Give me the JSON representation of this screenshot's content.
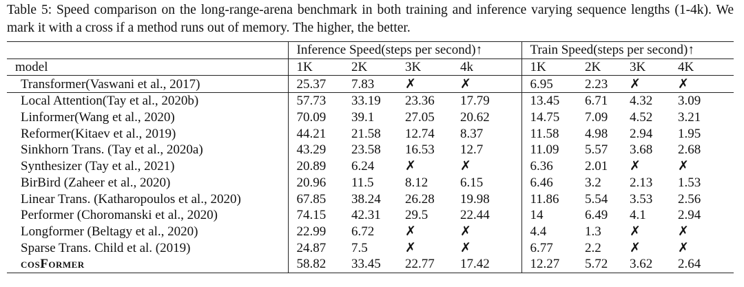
{
  "caption": "Table 5: Speed comparison on the long-range-arena benchmark in both training and inference varying sequence lengths (1-4k). We mark it with a cross if a method runs out of memory. The higher, the better.",
  "table": {
    "group_headers": [
      "Inference Speed(steps per second)↑",
      "Train Speed(steps per second)↑"
    ],
    "columns": [
      "model",
      "1K",
      "2K",
      "3K",
      "4k",
      "1K",
      "2K",
      "3K",
      "4K"
    ],
    "rows": [
      [
        "Transformer(Vaswani et al., 2017)",
        "25.37",
        "7.83",
        "✗",
        "✗",
        "6.95",
        "2.23",
        "✗",
        "✗"
      ],
      [
        "Local Attention(Tay et al., 2020b)",
        "57.73",
        "33.19",
        "23.36",
        "17.79",
        "13.45",
        "6.71",
        "4.32",
        "3.09"
      ],
      [
        "Linformer(Wang et al., 2020)",
        "70.09",
        "39.1",
        "27.05",
        "20.62",
        "14.75",
        "7.09",
        "4.52",
        "3.21"
      ],
      [
        "Reformer(Kitaev et al., 2019)",
        "44.21",
        "21.58",
        "12.74",
        "8.37",
        "11.58",
        "4.98",
        "2.94",
        "1.95"
      ],
      [
        "Sinkhorn Trans. (Tay et al., 2020a)",
        "43.29",
        "23.58",
        "16.53",
        "12.7",
        "11.09",
        "5.57",
        "3.68",
        "2.68"
      ],
      [
        "Synthesizer (Tay et al., 2021)",
        "20.89",
        "6.24",
        "✗",
        "✗",
        "6.36",
        "2.01",
        "✗",
        "✗"
      ],
      [
        "BirBird (Zaheer et al., 2020)",
        "20.96",
        "11.5",
        "8.12",
        "6.15",
        "6.46",
        "3.2",
        "2.13",
        "1.53"
      ],
      [
        "Linear Trans. (Katharopoulos et al., 2020)",
        "67.85",
        "38.24",
        "26.28",
        "19.98",
        "11.86",
        "5.54",
        "3.53",
        "2.56"
      ],
      [
        "Performer (Choromanski et al., 2020)",
        "74.15",
        "42.31",
        "29.5",
        "22.44",
        "14",
        "6.49",
        "4.1",
        "2.94"
      ],
      [
        "Longformer (Beltagy et al., 2020)",
        "22.99",
        "6.72",
        "✗",
        "✗",
        "4.4",
        "1.3",
        "✗",
        "✗"
      ],
      [
        "Sparse Trans. Child et al. (2019)",
        "24.87",
        "7.5",
        "✗",
        "✗",
        "6.77",
        "2.2",
        "✗",
        "✗"
      ],
      [
        "cosFormer",
        "58.82",
        "33.45",
        "22.77",
        "17.42",
        "12.27",
        "5.72",
        "3.62",
        "2.64"
      ]
    ]
  }
}
